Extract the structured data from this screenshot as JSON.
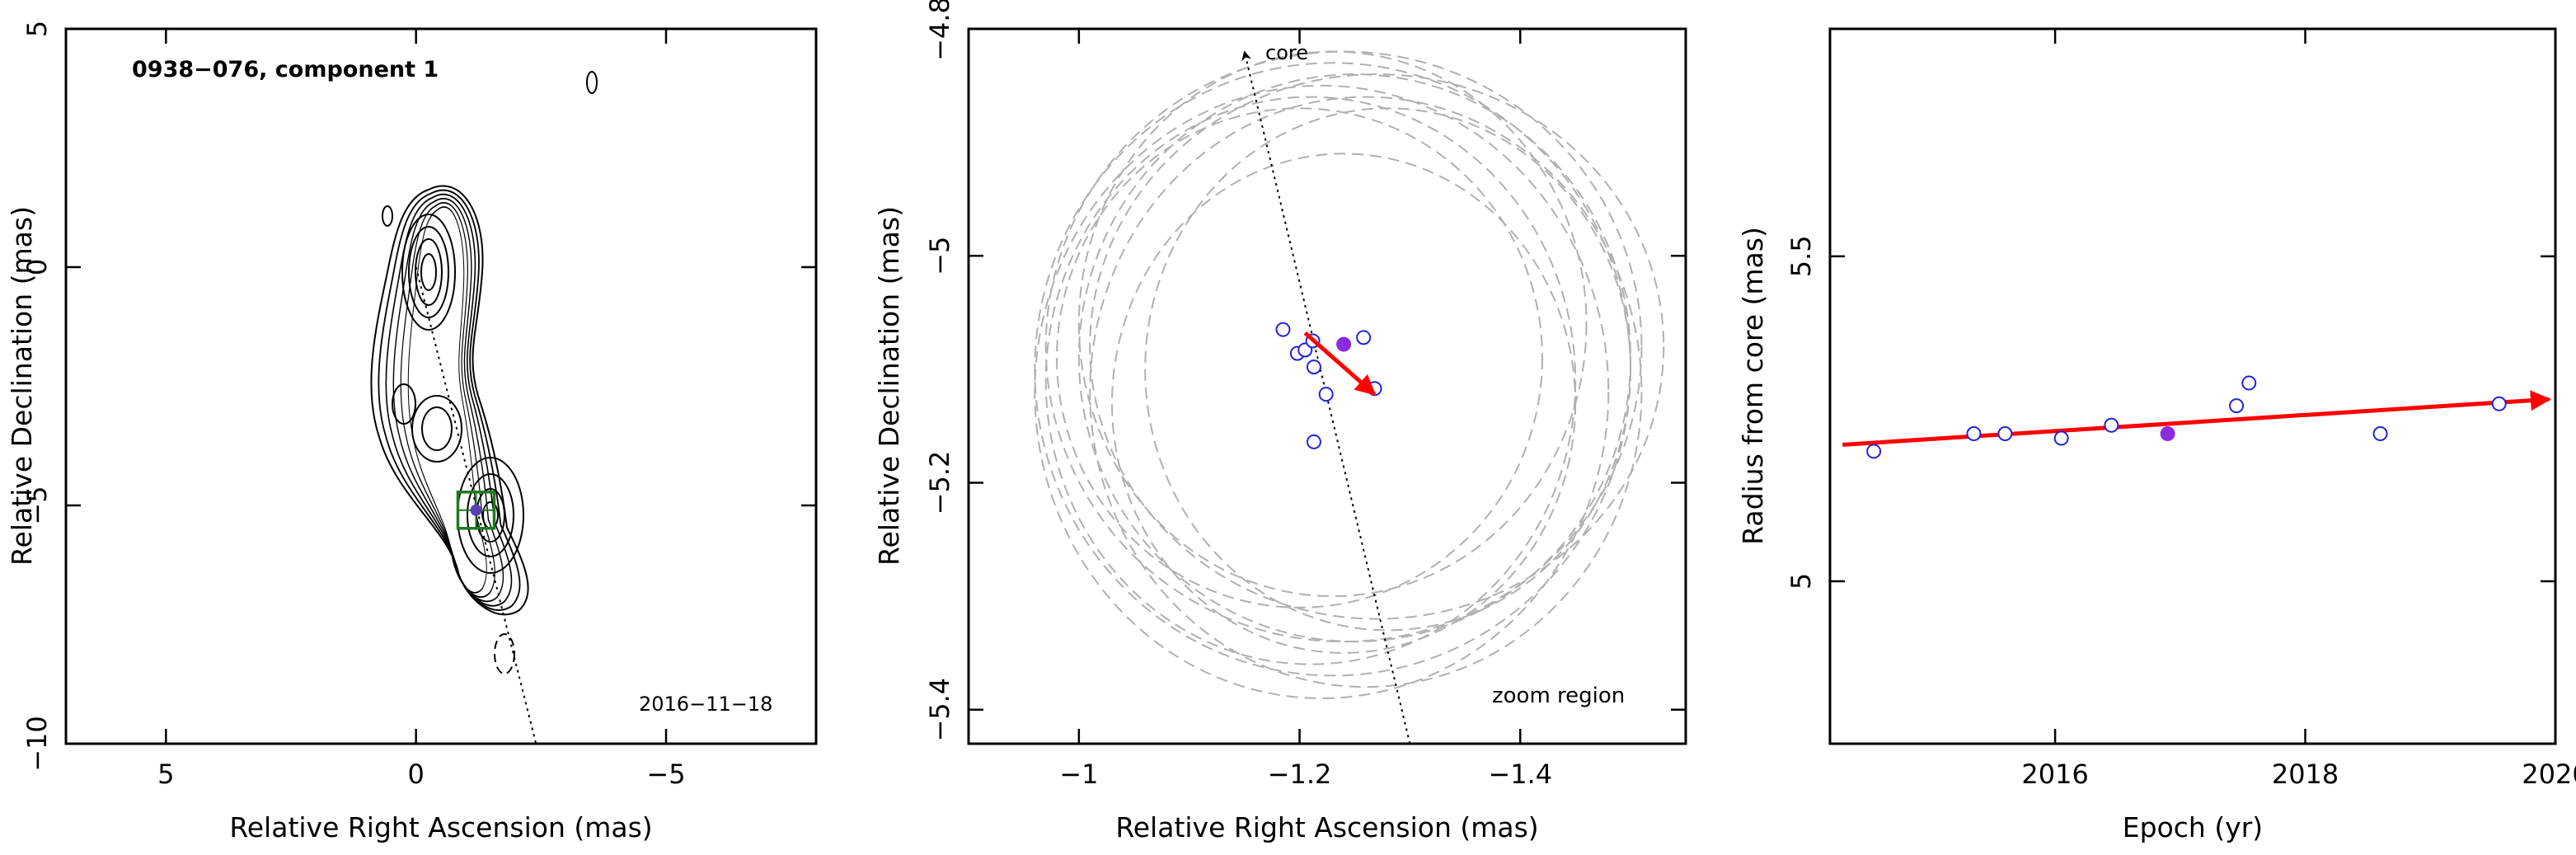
{
  "chart_data": [
    {
      "type": "contour",
      "annotation_title": "0938−076, component 1",
      "annotation_date": "2016−11−18",
      "xlabel": "Relative Right Ascension (mas)",
      "ylabel": "Relative Declination (mas)",
      "xlim": [
        7,
        -8
      ],
      "ylim": [
        -10,
        5
      ],
      "xticks": [
        5,
        0,
        -5
      ],
      "yticks": [
        5,
        0,
        -5,
        -10
      ],
      "tick_labels_x": [
        "5",
        "0",
        "−5"
      ],
      "tick_labels_y": [
        "5",
        "0",
        "−5",
        "−10"
      ],
      "component_position": {
        "x": -1.2,
        "y": -5.1
      },
      "core_line": {
        "from": [
          0,
          0
        ],
        "to": [
          -2.4,
          -10
        ]
      },
      "colors": {
        "contour": "#000000",
        "box": "#1f7a1f",
        "marker": "#5a3fb0",
        "line": "#000000"
      }
    },
    {
      "type": "scatter",
      "annotation_core": "core",
      "annotation_region": "zoom region",
      "xlabel": "Relative Right Ascension (mas)",
      "ylabel": "Relative Declination (mas)",
      "xlim": [
        -0.9,
        -1.55
      ],
      "ylim": [
        -5.43,
        -4.8
      ],
      "xticks": [
        -1,
        -1.2,
        -1.4
      ],
      "yticks": [
        -4.8,
        -5,
        -5.2,
        -5.4
      ],
      "tick_labels_x": [
        "−1",
        "−1.2",
        "−1.4"
      ],
      "tick_labels_y": [
        "−4.8",
        "−5",
        "−5.2",
        "−5.4"
      ],
      "points": [
        {
          "x": -1.185,
          "y": -5.065
        },
        {
          "x": -1.198,
          "y": -5.086
        },
        {
          "x": -1.205,
          "y": -5.083
        },
        {
          "x": -1.212,
          "y": -5.075
        },
        {
          "x": -1.213,
          "y": -5.098
        },
        {
          "x": -1.224,
          "y": -5.122
        },
        {
          "x": -1.258,
          "y": -5.072
        },
        {
          "x": -1.268,
          "y": -5.117
        },
        {
          "x": -1.213,
          "y": -5.164
        }
      ],
      "mean_point": {
        "x": -1.24,
        "y": -5.078
      },
      "trend_arrow": {
        "from": [
          -1.205,
          -5.068
        ],
        "to": [
          -1.268,
          -5.122
        ]
      },
      "core_direction_line": {
        "from": [
          -1.3,
          -5.43
        ],
        "to": [
          -1.15,
          -4.82
        ]
      },
      "error_ellipses": [
        {
          "cx": -1.23,
          "cy": -5.1,
          "rx": 0.27,
          "ry": 0.27
        },
        {
          "cx": -1.24,
          "cy": -5.08,
          "rx": 0.27,
          "ry": 0.26
        },
        {
          "cx": -1.22,
          "cy": -5.12,
          "rx": 0.26,
          "ry": 0.27
        },
        {
          "cx": -1.25,
          "cy": -5.09,
          "rx": 0.25,
          "ry": 0.25
        },
        {
          "cx": -1.21,
          "cy": -5.11,
          "rx": 0.24,
          "ry": 0.25
        },
        {
          "cx": -1.26,
          "cy": -5.12,
          "rx": 0.25,
          "ry": 0.26
        },
        {
          "cx": -1.23,
          "cy": -5.06,
          "rx": 0.23,
          "ry": 0.24
        },
        {
          "cx": -1.28,
          "cy": -5.1,
          "rx": 0.22,
          "ry": 0.23
        },
        {
          "cx": -1.2,
          "cy": -5.09,
          "rx": 0.22,
          "ry": 0.22
        },
        {
          "cx": -1.27,
          "cy": -5.08,
          "rx": 0.26,
          "ry": 0.24
        },
        {
          "cx": -1.24,
          "cy": -5.13,
          "rx": 0.21,
          "ry": 0.22
        }
      ],
      "colors": {
        "points": "#2222dd",
        "mean": "#8a2be2",
        "arrow": "#ff0000",
        "ellipses": "#b0b0b0",
        "line": "#000000"
      }
    },
    {
      "type": "scatter",
      "xlabel": "Epoch (yr)",
      "ylabel": "Radius from core (mas)",
      "xlim": [
        2014.2,
        2020
      ],
      "ylim": [
        4.75,
        5.85
      ],
      "xticks": [
        2016,
        2018,
        2020
      ],
      "yticks": [
        5,
        5.5
      ],
      "tick_labels_x": [
        "2016",
        "2018",
        "2020"
      ],
      "tick_labels_y": [
        "5",
        "5.5"
      ],
      "points": [
        {
          "x": 2014.55,
          "y": 5.2
        },
        {
          "x": 2015.35,
          "y": 5.227
        },
        {
          "x": 2015.6,
          "y": 5.227
        },
        {
          "x": 2016.05,
          "y": 5.22
        },
        {
          "x": 2016.45,
          "y": 5.24
        },
        {
          "x": 2017.45,
          "y": 5.27
        },
        {
          "x": 2017.55,
          "y": 5.305
        },
        {
          "x": 2018.6,
          "y": 5.227
        },
        {
          "x": 2019.55,
          "y": 5.273
        }
      ],
      "mean_point": {
        "x": 2016.9,
        "y": 5.227
      },
      "trend_arrow": {
        "from": [
          2014.3,
          5.21
        ],
        "to": [
          2019.95,
          5.28
        ]
      },
      "colors": {
        "points": "#2222dd",
        "mean": "#8a2be2",
        "arrow": "#ff0000"
      }
    }
  ]
}
